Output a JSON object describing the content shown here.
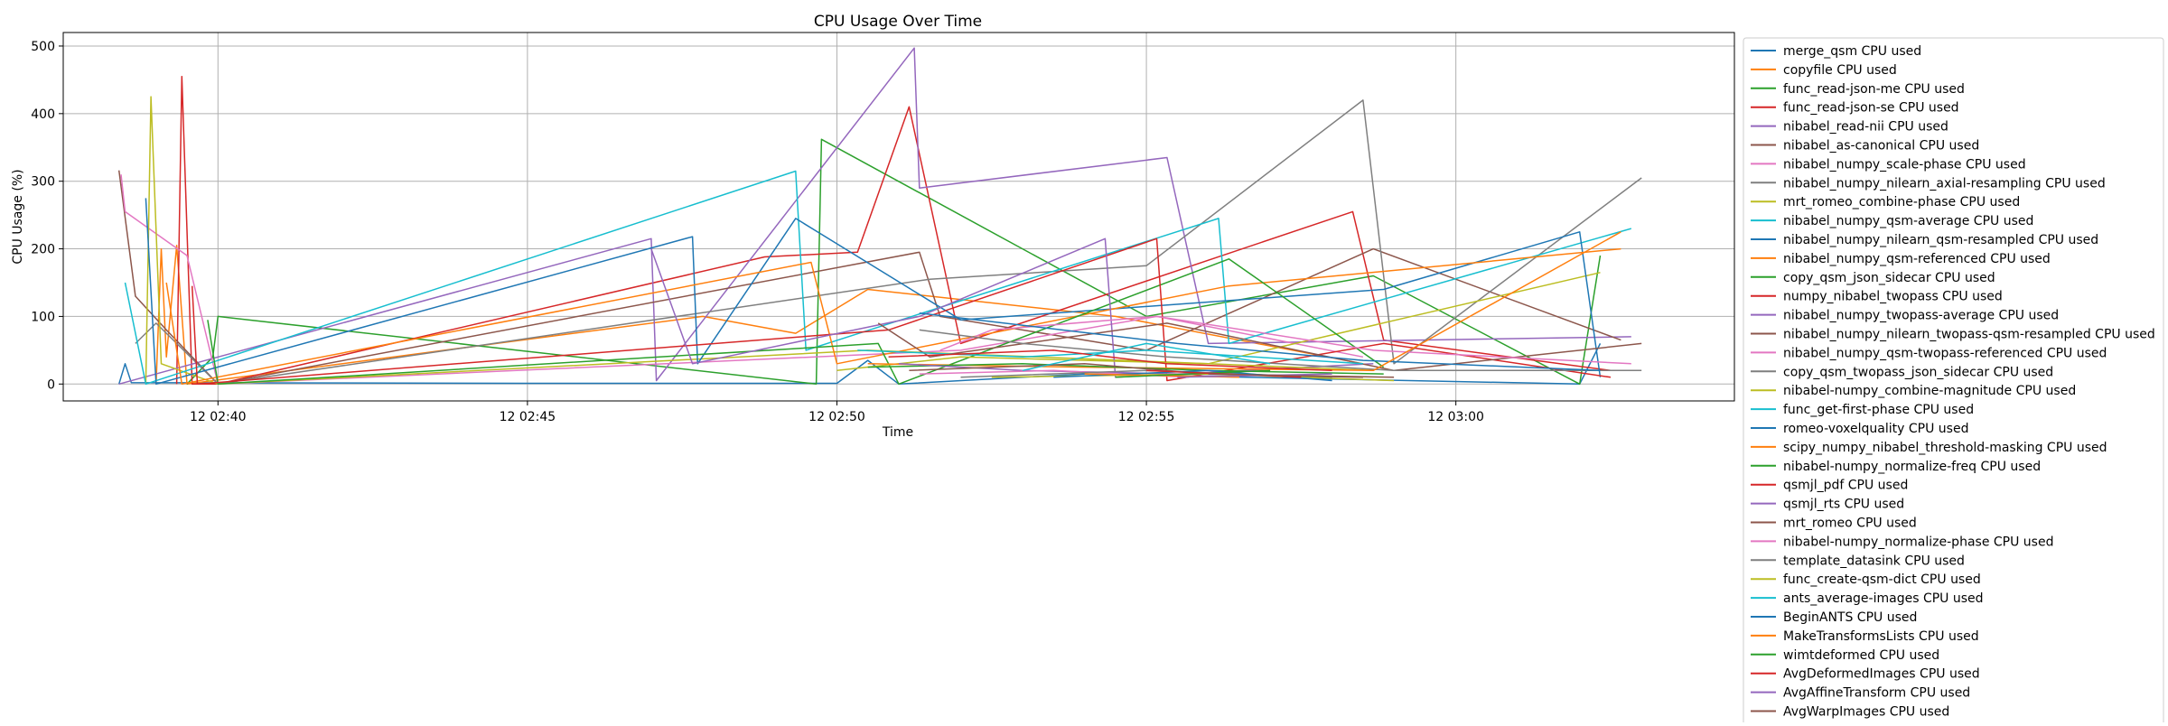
{
  "chart_data": {
    "type": "line",
    "title": "CPU Usage Over Time",
    "xlabel": "Time",
    "ylabel": "CPU Usage (%)",
    "x_ticks": [
      "12 02:40",
      "12 02:45",
      "12 02:50",
      "12 02:55",
      "12 03:00"
    ],
    "y_ticks": [
      "0",
      "100",
      "200",
      "300",
      "400",
      "500"
    ],
    "xlim": [
      "12 02:37:30",
      "12 03:04:30"
    ],
    "ylim": [
      -25,
      520
    ],
    "grid": true,
    "legend_position": "outside-right",
    "series": [
      {
        "name": "merge_qsm CPU used",
        "color": "#1f77b4",
        "points": [
          [
            "12 02:38:24",
            0
          ],
          [
            "12 02:38:30",
            30
          ],
          [
            "12 02:38:36",
            2
          ],
          [
            "12 02:45:00",
            1
          ],
          [
            "12 02:50:00",
            1
          ],
          [
            "12 02:50:30",
            35
          ],
          [
            "12 02:51:00",
            0
          ],
          [
            "12 02:54:00",
            15
          ],
          [
            "12 03:02:00",
            0
          ],
          [
            "12 03:02:20",
            60
          ]
        ]
      },
      {
        "name": "copyfile CPU used",
        "color": "#ff7f0e",
        "points": [
          [
            "12 02:39:00",
            0
          ],
          [
            "12 02:39:05",
            200
          ],
          [
            "12 02:39:10",
            40
          ],
          [
            "12 02:39:20",
            205
          ],
          [
            "12 02:39:30",
            0
          ],
          [
            "12 02:47:50",
            100
          ],
          [
            "12 02:49:20",
            75
          ],
          [
            "12 02:50:30",
            140
          ],
          [
            "12 02:54:30",
            100
          ],
          [
            "12 02:58:30",
            30
          ]
        ]
      },
      {
        "name": "func_read-json-me CPU used",
        "color": "#2ca02c",
        "points": [
          [
            "12 02:39:30",
            0
          ],
          [
            "12 02:39:55",
            40
          ],
          [
            "12 02:40:00",
            100
          ],
          [
            "12 02:49:40",
            0
          ],
          [
            "12 02:49:45",
            362
          ],
          [
            "12 02:55:00",
            100
          ],
          [
            "12 02:58:40",
            160
          ],
          [
            "12 03:02:00",
            0
          ],
          [
            "12 03:02:20",
            190
          ]
        ]
      },
      {
        "name": "func_read-json-se CPU used",
        "color": "#d62728",
        "points": [
          [
            "12 02:39:20",
            0
          ],
          [
            "12 02:39:25",
            455
          ],
          [
            "12 02:39:35",
            0
          ],
          [
            "12 02:40:00",
            0
          ],
          [
            "12 02:48:50",
            188
          ],
          [
            "12 02:50:20",
            195
          ],
          [
            "12 02:51:10",
            410
          ],
          [
            "12 02:52:00",
            60
          ],
          [
            "12 02:58:20",
            255
          ],
          [
            "12 02:58:50",
            65
          ],
          [
            "12 03:02:30",
            20
          ]
        ]
      },
      {
        "name": "nibabel_read-nii CPU used",
        "color": "#9467bd",
        "points": [
          [
            "12 02:38:24",
            0
          ],
          [
            "12 02:47:00",
            215
          ],
          [
            "12 02:47:05",
            5
          ],
          [
            "12 02:51:15",
            497
          ],
          [
            "12 02:51:20",
            290
          ],
          [
            "12 02:55:20",
            335
          ],
          [
            "12 02:56:00",
            60
          ],
          [
            "12 03:02:50",
            70
          ]
        ]
      },
      {
        "name": "nibabel_as-canonical CPU used",
        "color": "#8c564b",
        "points": [
          [
            "12 02:38:24",
            316
          ],
          [
            "12 02:38:40",
            130
          ],
          [
            "12 02:39:10",
            80
          ],
          [
            "12 02:40:00",
            0
          ],
          [
            "12 02:51:20",
            195
          ],
          [
            "12 02:51:40",
            100
          ],
          [
            "12 02:55:00",
            50
          ],
          [
            "12 02:58:40",
            200
          ],
          [
            "12 03:02:40",
            65
          ]
        ]
      },
      {
        "name": "nibabel_numpy_scale-phase CPU used",
        "color": "#e377c2",
        "points": [
          [
            "12 02:38:26",
            310
          ],
          [
            "12 02:38:30",
            255
          ],
          [
            "12 02:39:30",
            190
          ],
          [
            "12 02:40:00",
            0
          ],
          [
            "12 02:52:00",
            50
          ],
          [
            "12 02:55:10",
            100
          ],
          [
            "12 02:58:30",
            40
          ]
        ]
      },
      {
        "name": "nibabel_numpy_nilearn_axial-resampling CPU used",
        "color": "#7f7f7f",
        "points": [
          [
            "12 02:38:40",
            60
          ],
          [
            "12 02:39:00",
            90
          ],
          [
            "12 02:40:00",
            0
          ],
          [
            "12 02:51:30",
            155
          ],
          [
            "12 02:55:00",
            175
          ],
          [
            "12 02:58:30",
            420
          ],
          [
            "12 02:59:00",
            30
          ],
          [
            "12 03:03:00",
            305
          ]
        ]
      },
      {
        "name": "mrt_romeo_combine-phase CPU used",
        "color": "#bcbd22",
        "points": [
          [
            "12 02:38:50",
            0
          ],
          [
            "12 02:38:55",
            425
          ],
          [
            "12 02:39:05",
            30
          ],
          [
            "12 02:40:00",
            0
          ],
          [
            "12 02:50:30",
            50
          ],
          [
            "12 02:56:00",
            30
          ],
          [
            "12 03:02:20",
            165
          ]
        ]
      },
      {
        "name": "nibabel_numpy_qsm-average CPU used",
        "color": "#17becf",
        "points": [
          [
            "12 02:38:30",
            150
          ],
          [
            "12 02:38:50",
            0
          ],
          [
            "12 02:49:20",
            315
          ],
          [
            "12 02:49:30",
            50
          ],
          [
            "12 02:56:10",
            245
          ],
          [
            "12 02:56:20",
            60
          ],
          [
            "12 03:02:50",
            230
          ]
        ]
      },
      {
        "name": "nibabel_numpy_nilearn_qsm-resampled CPU used",
        "color": "#1f77b4",
        "points": [
          [
            "12 02:38:50",
            275
          ],
          [
            "12 02:39:00",
            0
          ],
          [
            "12 02:47:40",
            218
          ],
          [
            "12 02:47:45",
            30
          ],
          [
            "12 02:49:20",
            245
          ],
          [
            "12 02:52:00",
            95
          ],
          [
            "12 02:58:50",
            140
          ],
          [
            "12 03:02:00",
            225
          ],
          [
            "12 03:02:20",
            10
          ]
        ]
      },
      {
        "name": "nibabel_numpy_qsm-referenced CPU used",
        "color": "#ff7f0e",
        "points": [
          [
            "12 02:39:10",
            150
          ],
          [
            "12 02:39:25",
            0
          ],
          [
            "12 02:49:35",
            180
          ],
          [
            "12 02:50:00",
            30
          ],
          [
            "12 02:56:20",
            145
          ],
          [
            "12 03:02:40",
            200
          ]
        ]
      },
      {
        "name": "copy_qsm_json_sidecar CPU used",
        "color": "#2ca02c",
        "points": [
          [
            "12 02:39:50",
            95
          ],
          [
            "12 02:40:00",
            0
          ],
          [
            "12 02:50:40",
            60
          ],
          [
            "12 02:51:00",
            0
          ],
          [
            "12 02:56:20",
            185
          ],
          [
            "12 02:58:50",
            25
          ]
        ]
      },
      {
        "name": "numpy_nibabel_twopass CPU used",
        "color": "#d62728",
        "points": [
          [
            "12 02:39:35",
            145
          ],
          [
            "12 02:39:40",
            0
          ],
          [
            "12 02:50:50",
            80
          ],
          [
            "12 02:55:10",
            215
          ],
          [
            "12 02:55:20",
            5
          ],
          [
            "12 02:58:50",
            60
          ],
          [
            "12 03:02:30",
            10
          ]
        ]
      },
      {
        "name": "nibabel_numpy_twopass-average CPU used",
        "color": "#9467bd",
        "points": [
          [
            "12 02:47:00",
            200
          ],
          [
            "12 02:47:40",
            30
          ],
          [
            "12 02:51:20",
            100
          ],
          [
            "12 02:54:20",
            215
          ],
          [
            "12 02:54:30",
            10
          ],
          [
            "12 02:58:40",
            30
          ]
        ]
      },
      {
        "name": "nibabel_numpy_nilearn_twopass-qsm-resampled CPU used",
        "color": "#8c564b",
        "points": [
          [
            "12 02:50:40",
            90
          ],
          [
            "12 02:51:30",
            40
          ],
          [
            "12 02:55:20",
            90
          ],
          [
            "12 02:59:00",
            20
          ],
          [
            "12 03:03:00",
            60
          ]
        ]
      },
      {
        "name": "nibabel_numpy_qsm-twopass-referenced CPU used",
        "color": "#e377c2",
        "points": [
          [
            "12 02:51:40",
            50
          ],
          [
            "12 02:52:30",
            80
          ],
          [
            "12 02:55:10",
            100
          ],
          [
            "12 02:58:40",
            50
          ],
          [
            "12 03:02:50",
            30
          ]
        ]
      },
      {
        "name": "copy_qsm_twopass_json_sidecar CPU used",
        "color": "#7f7f7f",
        "points": [
          [
            "12 02:51:20",
            80
          ],
          [
            "12 02:53:00",
            60
          ],
          [
            "12 02:55:20",
            40
          ],
          [
            "12 02:59:00",
            20
          ],
          [
            "12 03:03:00",
            20
          ]
        ]
      },
      {
        "name": "nibabel-numpy_combine-magnitude CPU used",
        "color": "#bcbd22",
        "points": [
          [
            "12 02:50:00",
            20
          ],
          [
            "12 02:52:00",
            40
          ],
          [
            "12 02:56:00",
            30
          ],
          [
            "12 02:58:40",
            20
          ]
        ]
      },
      {
        "name": "func_get-first-phase CPU used",
        "color": "#17becf",
        "points": [
          [
            "12 02:50:20",
            50
          ],
          [
            "12 02:53:00",
            40
          ],
          [
            "12 02:55:00",
            50
          ],
          [
            "12 02:58:30",
            30
          ]
        ]
      },
      {
        "name": "romeo-voxelquality CPU used",
        "color": "#1f77b4",
        "points": [
          [
            "12 02:51:20",
            105
          ],
          [
            "12 02:55:30",
            60
          ],
          [
            "12 02:58:30",
            35
          ],
          [
            "12 03:02:20",
            20
          ]
        ]
      },
      {
        "name": "scipy_numpy_nibabel_threshold-masking CPU used",
        "color": "#ff7f0e",
        "points": [
          [
            "12 02:50:30",
            30
          ],
          [
            "12 02:54:00",
            25
          ],
          [
            "12 02:58:40",
            20
          ],
          [
            "12 03:02:40",
            225
          ]
        ]
      },
      {
        "name": "nibabel-numpy_normalize-freq CPU used",
        "color": "#2ca02c",
        "points": [
          [
            "12 02:50:30",
            25
          ],
          [
            "12 02:53:00",
            30
          ],
          [
            "12 02:56:00",
            20
          ],
          [
            "12 02:58:50",
            15
          ]
        ]
      },
      {
        "name": "qsmjl_pdf CPU used",
        "color": "#d62728",
        "points": [
          [
            "12 02:50:50",
            40
          ],
          [
            "12 02:53:30",
            50
          ],
          [
            "12 02:55:20",
            30
          ],
          [
            "12 02:58:00",
            20
          ]
        ]
      },
      {
        "name": "qsmjl_rts CPU used",
        "color": "#9467bd",
        "points": [
          [
            "12 02:51:00",
            30
          ],
          [
            "12 02:53:00",
            20
          ],
          [
            "12 02:55:30",
            15
          ],
          [
            "12 02:58:30",
            10
          ]
        ]
      },
      {
        "name": "mrt_romeo CPU used",
        "color": "#8c564b",
        "points": [
          [
            "12 02:51:10",
            20
          ],
          [
            "12 02:54:00",
            30
          ],
          [
            "12 02:56:00",
            15
          ],
          [
            "12 02:59:00",
            10
          ]
        ]
      },
      {
        "name": "nibabel-numpy_normalize-phase CPU used",
        "color": "#e377c2",
        "points": [
          [
            "12 02:51:20",
            15
          ],
          [
            "12 02:53:30",
            20
          ],
          [
            "12 02:55:40",
            10
          ]
        ]
      },
      {
        "name": "template_datasink CPU used",
        "color": "#7f7f7f",
        "points": [
          [
            "12 02:52:00",
            10
          ],
          [
            "12 02:55:00",
            20
          ],
          [
            "12 02:58:00",
            10
          ]
        ]
      },
      {
        "name": "func_create-qsm-dict CPU used",
        "color": "#bcbd22",
        "points": [
          [
            "12 02:52:30",
            10
          ],
          [
            "12 02:56:00",
            15
          ],
          [
            "12 02:59:00",
            5
          ]
        ]
      },
      {
        "name": "ants_average-images CPU used",
        "color": "#17becf",
        "points": [
          [
            "12 02:53:00",
            20
          ],
          [
            "12 02:55:00",
            60
          ],
          [
            "12 02:57:00",
            30
          ]
        ]
      },
      {
        "name": "BeginANTS CPU used",
        "color": "#1f77b4",
        "points": [
          [
            "12 02:53:30",
            10
          ],
          [
            "12 02:56:00",
            20
          ],
          [
            "12 02:58:00",
            5
          ]
        ]
      },
      {
        "name": "MakeTransformsLists CPU used",
        "color": "#ff7f0e",
        "points": [
          [
            "12 02:54:00",
            15
          ],
          [
            "12 02:56:30",
            10
          ]
        ]
      },
      {
        "name": "wimtdeformed CPU used",
        "color": "#2ca02c",
        "points": [
          [
            "12 02:54:30",
            10
          ],
          [
            "12 02:57:00",
            20
          ]
        ]
      },
      {
        "name": "AvgDeformedImages CPU used",
        "color": "#d62728",
        "points": [
          [
            "12 02:55:00",
            20
          ],
          [
            "12 02:57:30",
            10
          ]
        ]
      },
      {
        "name": "AvgAffineTransform CPU used",
        "color": "#9467bd",
        "points": [
          [
            "12 02:55:30",
            10
          ],
          [
            "12 02:58:00",
            15
          ]
        ]
      },
      {
        "name": "AvgWarpImages CPU used",
        "color": "#8c564b",
        "points": [
          [
            "12 02:56:00",
            15
          ],
          [
            "12 02:58:30",
            10
          ]
        ]
      }
    ]
  }
}
